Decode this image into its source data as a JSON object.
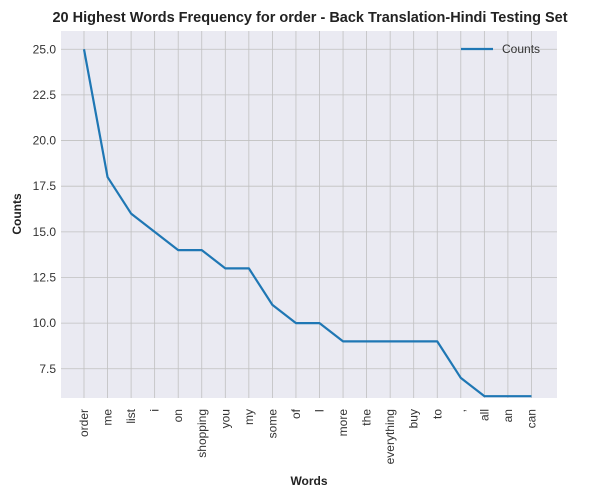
{
  "chart_data": {
    "type": "line",
    "title": "20 Highest Words Frequency for order - Back Translation-Hindi Testing Set",
    "xlabel": "Words",
    "ylabel": "Counts",
    "categories": [
      "order",
      "me",
      "list",
      "i",
      "on",
      "shopping",
      "you",
      "my",
      "some",
      "of",
      "I",
      "more",
      "the",
      "everything",
      "buy",
      "to",
      ",",
      "all",
      "an",
      "can"
    ],
    "series": [
      {
        "name": "Counts",
        "values": [
          25,
          18,
          16,
          15,
          14,
          14,
          13,
          13,
          11,
          10,
          10,
          9,
          9,
          9,
          9,
          9,
          7,
          6,
          6,
          6
        ]
      }
    ],
    "ylim": [
      5.9,
      26.0
    ],
    "yticks": [
      7.5,
      10.0,
      12.5,
      15.0,
      17.5,
      20.0,
      22.5,
      25.0
    ],
    "ytick_labels": [
      "7.5",
      "10.0",
      "12.5",
      "15.0",
      "17.5",
      "20.0",
      "22.5",
      "25.0"
    ],
    "grid": true,
    "legend_position": "top-right",
    "colors": {
      "line": "#1f77b4",
      "plot_background": "#eaeaf2",
      "grid": "#c0c0c0"
    }
  }
}
